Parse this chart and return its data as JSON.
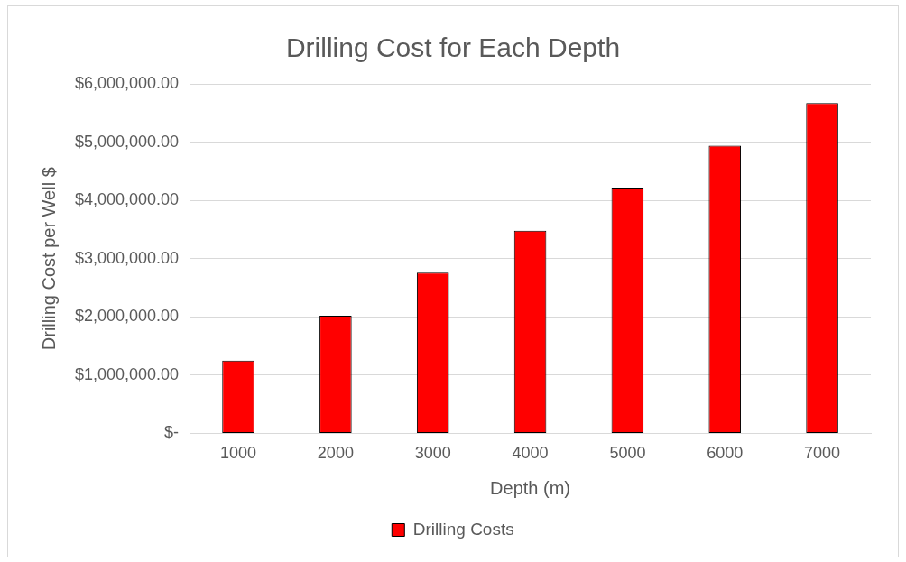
{
  "chart_data": {
    "type": "bar",
    "title": "Drilling Cost for Each Depth",
    "xlabel": "Depth (m)",
    "ylabel": "Drilling Cost per Well $",
    "categories": [
      "1000",
      "2000",
      "3000",
      "4000",
      "5000",
      "6000",
      "7000"
    ],
    "series": [
      {
        "name": "Drilling Costs",
        "color": "#ff0000",
        "values": [
          1250000,
          2020000,
          2760000,
          3480000,
          4220000,
          4940000,
          5670000
        ]
      }
    ],
    "ylim": [
      0,
      6000000
    ],
    "yticks": [
      {
        "value": 0,
        "label": "$-"
      },
      {
        "value": 1000000,
        "label": "$1,000,000.00"
      },
      {
        "value": 2000000,
        "label": "$2,000,000.00"
      },
      {
        "value": 3000000,
        "label": "$3,000,000.00"
      },
      {
        "value": 4000000,
        "label": "$4,000,000.00"
      },
      {
        "value": 5000000,
        "label": "$5,000,000.00"
      },
      {
        "value": 6000000,
        "label": "$6,000,000.00"
      }
    ],
    "grid": "y",
    "legend": "bottom"
  }
}
